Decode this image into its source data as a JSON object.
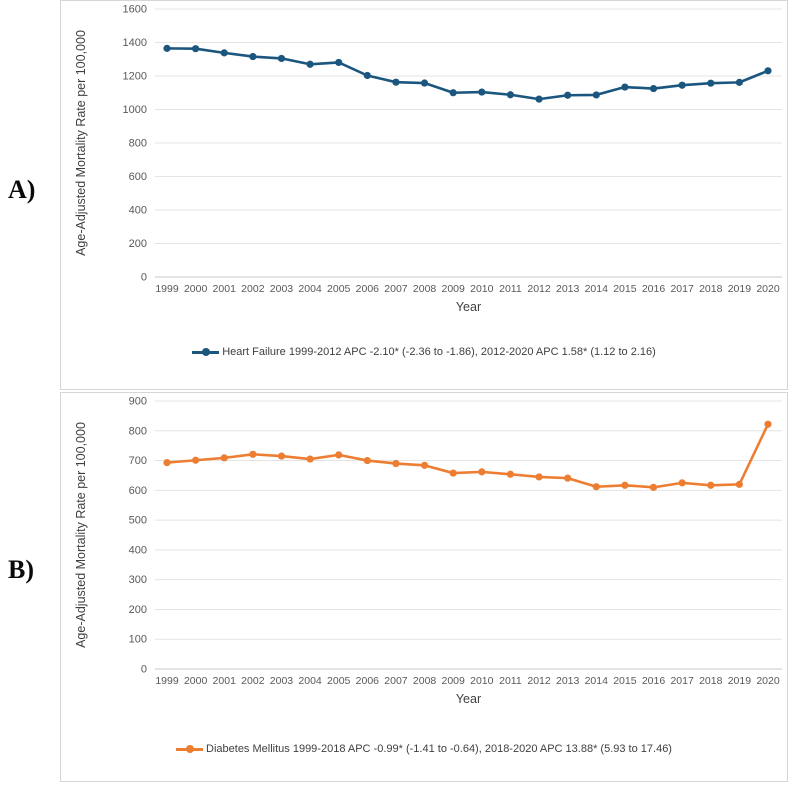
{
  "figure": {
    "panel_a_label": "A)",
    "panel_b_label": "B)"
  },
  "chart_data": [
    {
      "type": "line",
      "panel": "A",
      "title": "",
      "xlabel": "Year",
      "ylabel": "Age-Adjusted Mortality Rate per 100,000",
      "ylim": [
        0,
        1600
      ],
      "ytick_step": 200,
      "grid": true,
      "legend_position": "bottom",
      "legend": "Heart Failure 1999-2012 APC -2.10* (-2.36 to -1.86), 2012-2020 APC 1.58* (1.12 to 2.16)",
      "color": "#1b567f",
      "categories": [
        "1999",
        "2000",
        "2001",
        "2002",
        "2003",
        "2004",
        "2005",
        "2006",
        "2007",
        "2008",
        "2009",
        "2010",
        "2011",
        "2012",
        "2013",
        "2014",
        "2015",
        "2016",
        "2017",
        "2018",
        "2019",
        "2020"
      ],
      "values": [
        1365,
        1363,
        1338,
        1316,
        1305,
        1270,
        1281,
        1203,
        1163,
        1158,
        1100,
        1104,
        1088,
        1062,
        1085,
        1087,
        1134,
        1125,
        1145,
        1157,
        1162,
        1231
      ]
    },
    {
      "type": "line",
      "panel": "B",
      "title": "",
      "xlabel": "Year",
      "ylabel": "Age-Adjusted Mortality Rate per 100,000",
      "ylim": [
        0,
        900
      ],
      "ytick_step": 100,
      "grid": true,
      "legend_position": "bottom",
      "legend": "Diabetes Mellitus 1999-2018 APC -0.99* (-1.41 to -0.64), 2018-2020 APC 13.88* (5.93 to 17.46)",
      "color": "#ed7d31",
      "categories": [
        "1999",
        "2000",
        "2001",
        "2002",
        "2003",
        "2004",
        "2005",
        "2006",
        "2007",
        "2008",
        "2009",
        "2010",
        "2011",
        "2012",
        "2013",
        "2014",
        "2015",
        "2016",
        "2017",
        "2018",
        "2019",
        "2020"
      ],
      "values": [
        693,
        701,
        709,
        721,
        715,
        705,
        719,
        700,
        690,
        684,
        658,
        662,
        654,
        645,
        641,
        612,
        617,
        610,
        625,
        617,
        620,
        822
      ]
    }
  ]
}
